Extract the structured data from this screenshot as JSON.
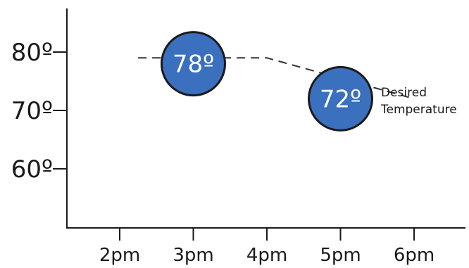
{
  "chart_data": {
    "type": "scatter",
    "title": "",
    "xlabel": "",
    "ylabel": "",
    "categories": [
      "2pm",
      "3pm",
      "4pm",
      "5pm",
      "6pm"
    ],
    "y_ticks": [
      {
        "value": 60,
        "label": "60º"
      },
      {
        "value": 70,
        "label": "70º"
      },
      {
        "value": 80,
        "label": "80º"
      }
    ],
    "ylim": [
      50,
      98
    ],
    "trend": [
      {
        "x": 1.25,
        "y": 79
      },
      {
        "x": 3,
        "y": 79
      },
      {
        "x": 5,
        "y": 72
      }
    ],
    "points": [
      {
        "x": "3pm",
        "value": 78,
        "label": "78º"
      },
      {
        "x": "5pm",
        "value": 72,
        "label": "72º"
      }
    ],
    "annotation": {
      "lines": [
        "Desired",
        "Temperature"
      ]
    },
    "grid": false,
    "legend": "none",
    "colors": {
      "point_fill": "#3a70bd",
      "axis": "#1a1a1a",
      "label_text": "#ffffff"
    }
  }
}
